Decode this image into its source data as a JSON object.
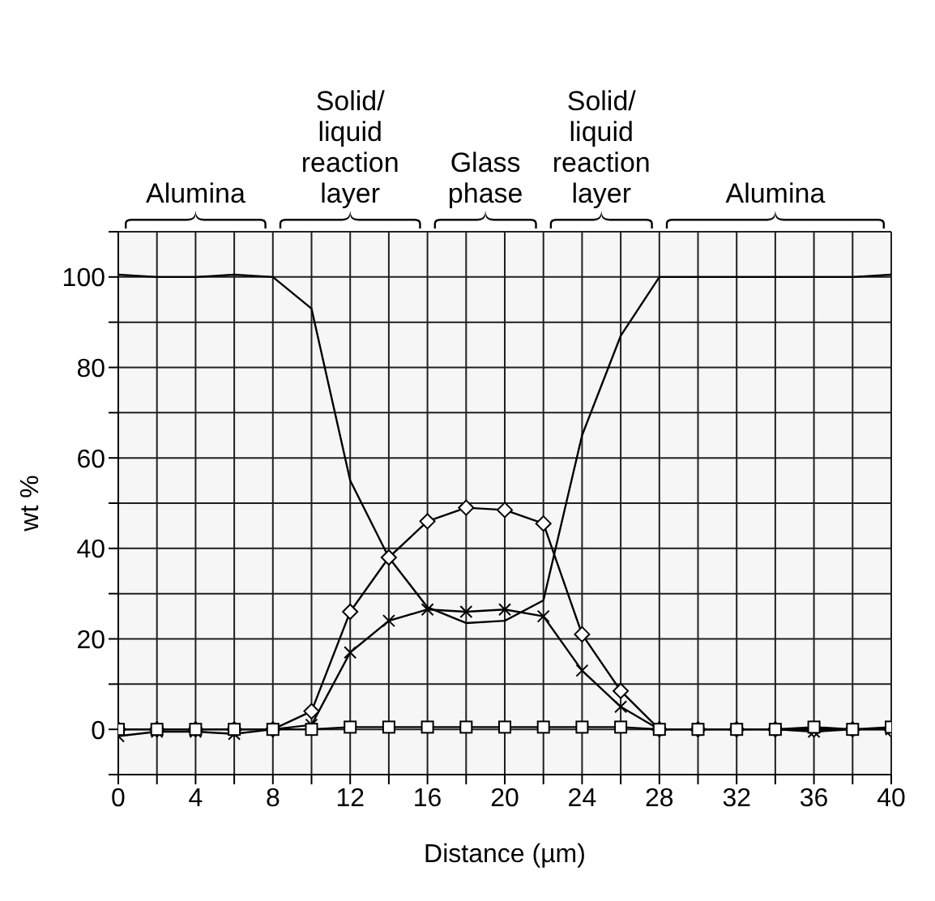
{
  "chart_data": {
    "type": "line",
    "xlabel": "Distance (µm)",
    "ylabel": "wt %",
    "xlim": [
      0,
      40
    ],
    "xticks": [
      0,
      {
        "value": 2,
        "label": null
      },
      4,
      {
        "value": 6,
        "label": null
      },
      8,
      {
        "value": 10,
        "label": null
      },
      12,
      {
        "value": 14,
        "label": null
      },
      16,
      {
        "value": 18,
        "label": null
      },
      20,
      {
        "value": 22,
        "label": null
      },
      24,
      {
        "value": 26,
        "label": null
      },
      28,
      {
        "value": 30,
        "label": null
      },
      32,
      {
        "value": 34,
        "label": null
      },
      36,
      {
        "value": 38,
        "label": null
      },
      40
    ],
    "ylim": [
      -10,
      110
    ],
    "yticks": [
      {
        "value": -10,
        "label": null
      },
      0,
      {
        "value": 10,
        "label": null
      },
      20,
      {
        "value": 30,
        "label": null
      },
      40,
      {
        "value": 50,
        "label": null
      },
      60,
      {
        "value": 70,
        "label": null
      },
      80,
      {
        "value": 90,
        "label": null
      },
      100,
      {
        "value": 110,
        "label": null
      }
    ],
    "x": [
      0,
      2,
      4,
      6,
      8,
      10,
      12,
      14,
      16,
      18,
      20,
      22,
      24,
      26,
      28,
      30,
      32,
      34,
      36,
      38,
      40
    ],
    "series": [
      {
        "color": "#000000",
        "marker": "none",
        "values": [
          100.5,
          100,
          100,
          100.5,
          100,
          93,
          55,
          38,
          27,
          23.5,
          24,
          28.5,
          65,
          87,
          100,
          100,
          100,
          100,
          100,
          100,
          100.5
        ]
      },
      {
        "color": "#000000",
        "marker": "diamond",
        "values": [
          0,
          0,
          0,
          0,
          0,
          4,
          26,
          38,
          46,
          49,
          48.5,
          45.5,
          21,
          8.5,
          0,
          0,
          0,
          0,
          0,
          0,
          0
        ]
      },
      {
        "color": "#000000",
        "marker": "cross",
        "values": [
          -1.5,
          -0.5,
          -0.5,
          -1,
          0,
          1,
          17,
          24,
          26.5,
          26,
          26.5,
          25,
          13,
          5,
          0,
          0,
          0,
          0,
          -0.5,
          0,
          0
        ]
      },
      {
        "color": "#000000",
        "marker": "square",
        "values": [
          0,
          0,
          0,
          0,
          0,
          0,
          0.5,
          0.5,
          0.5,
          0.5,
          0.5,
          0.5,
          0.5,
          0.5,
          0,
          0,
          0,
          0,
          0.5,
          0,
          0.5
        ]
      }
    ],
    "bands": [
      {
        "axis": "x",
        "from": 0,
        "to": 8,
        "label": "Alumina"
      },
      {
        "axis": "x",
        "from": 8,
        "to": 16,
        "label": "Solid/\nliquid\nreaction\nlayer"
      },
      {
        "axis": "x",
        "from": 16,
        "to": 22,
        "label": "Glass\nphase"
      },
      {
        "axis": "x",
        "from": 22,
        "to": 28,
        "label": "Solid/\nliquid\nreaction\nlayer"
      },
      {
        "axis": "x",
        "from": 28,
        "to": 40,
        "label": "Alumina"
      }
    ],
    "grid": true,
    "line_style": "solid"
  }
}
